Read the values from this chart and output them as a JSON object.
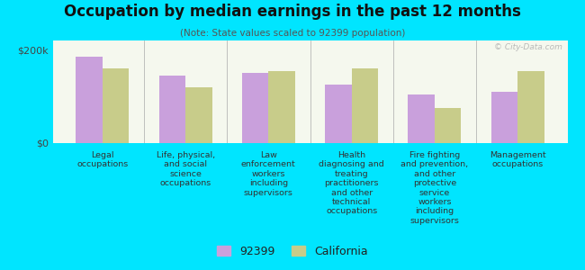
{
  "title": "Occupation by median earnings in the past 12 months",
  "subtitle": "(Note: State values scaled to 92399 population)",
  "background_color": "#00e5ff",
  "plot_bg_top": "#e8f0d8",
  "plot_bg_bottom": "#f5f8ee",
  "categories": [
    "Legal\noccupations",
    "Life, physical,\nand social\nscience\noccupations",
    "Law\nenforcement\nworkers\nincluding\nsupervisors",
    "Health\ndiagnosing and\ntreating\npractitioners\nand other\ntechnical\noccupations",
    "Fire fighting\nand prevention,\nand other\nprotective\nservice\nworkers\nincluding\nsupervisors",
    "Management\noccupations"
  ],
  "values_92399": [
    185000,
    145000,
    150000,
    125000,
    105000,
    110000
  ],
  "values_california": [
    160000,
    120000,
    155000,
    160000,
    75000,
    155000
  ],
  "color_92399": "#c9a0dc",
  "color_california": "#c8cc8a",
  "ylim": [
    0,
    220000
  ],
  "yticks": [
    0,
    200000
  ],
  "ytick_labels": [
    "$0",
    "$200k"
  ],
  "legend_92399": "92399",
  "legend_california": "California",
  "bar_width": 0.32,
  "watermark": "© City-Data.com"
}
